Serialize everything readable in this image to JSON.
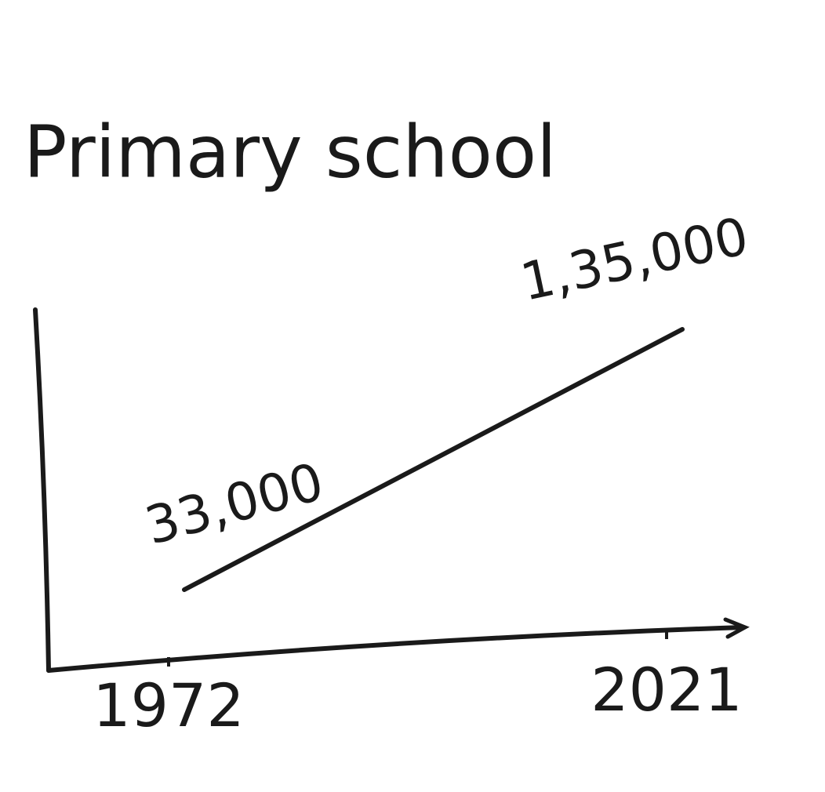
{
  "chart_data": {
    "type": "line",
    "title": "Primary school",
    "x": [
      1972,
      2021
    ],
    "values": [
      33000,
      135000
    ],
    "value_labels": [
      "33,000",
      "1,35,000"
    ],
    "color": "#1a1a1a"
  }
}
